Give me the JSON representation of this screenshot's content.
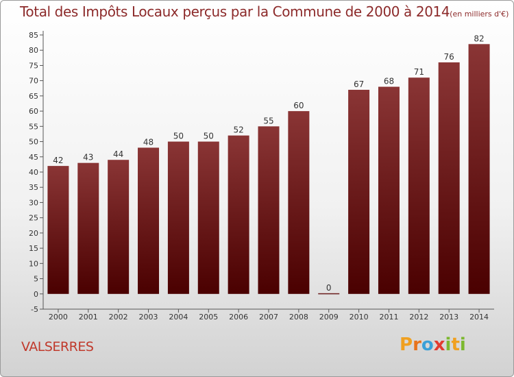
{
  "header": {
    "title": "Total des Impôts Locaux perçus par la Commune de 2000 à 2014",
    "unit": "(en milliers d'€)"
  },
  "footer": {
    "commune": "VALSERRES",
    "logo_letters": [
      "P",
      "r",
      "o",
      "x",
      "i",
      "t",
      "i"
    ],
    "logo_colors": [
      "#f0a020",
      "#e8731c",
      "#3aa0d8",
      "#e23b2f",
      "#7cb82f",
      "#f0a020",
      "#7cb82f"
    ]
  },
  "chart_data": {
    "type": "bar",
    "categories": [
      "2000",
      "2001",
      "2002",
      "2003",
      "2004",
      "2005",
      "2006",
      "2007",
      "2008",
      "2009",
      "2010",
      "2011",
      "2012",
      "2013",
      "2014"
    ],
    "values": [
      42,
      43,
      44,
      48,
      50,
      50,
      52,
      55,
      60,
      0,
      67,
      68,
      71,
      76,
      82
    ],
    "title": "Total des Impôts Locaux perçus par la Commune de 2000 à 2014",
    "ylim": [
      -5,
      85
    ],
    "yticks": [
      -5,
      0,
      5,
      10,
      15,
      20,
      25,
      30,
      35,
      40,
      45,
      50,
      55,
      60,
      65,
      70,
      75,
      80,
      85
    ],
    "grid": false,
    "bar_color_top": "#8a3535",
    "bar_color_bottom": "#4a0000"
  }
}
